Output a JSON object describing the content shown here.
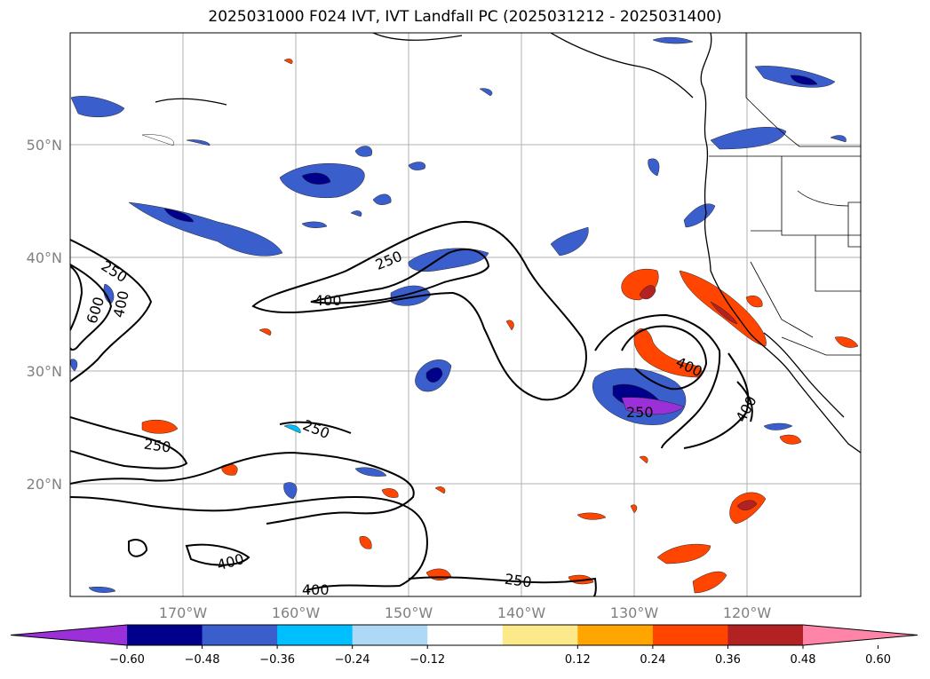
{
  "title": "2025031000 F024 IVT, IVT Landfall PC (2025031212 - 2025031400)",
  "lat_labels": [
    "50°N",
    "40°N",
    "30°N",
    "20°N"
  ],
  "lon_labels": [
    "170°W",
    "160°W",
    "150°W",
    "140°W",
    "130°W",
    "120°W"
  ],
  "contour_labels": [
    "250",
    "400",
    "250",
    "400",
    "600",
    "250",
    "250",
    "400",
    "250",
    "400",
    "250",
    "400",
    "400"
  ],
  "colorbar": {
    "ticks": [
      "−0.60",
      "−0.48",
      "−0.36",
      "−0.24",
      "−0.12",
      "0.12",
      "0.24",
      "0.36",
      "0.48",
      "0.60"
    ],
    "colors": [
      "#9b30d9",
      "#00008b",
      "#3a5fcd",
      "#00bfff",
      "#add8f6",
      "#ffffff",
      "#fce98a",
      "#ffa500",
      "#ff4500",
      "#b22222",
      "#ff85a8"
    ]
  }
}
